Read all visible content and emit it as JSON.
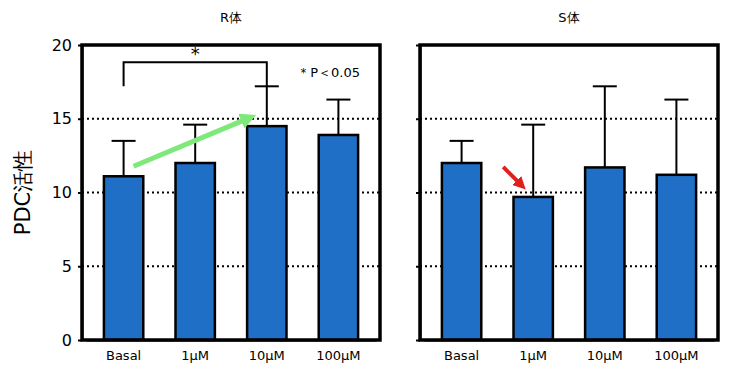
{
  "chart_data": [
    {
      "type": "bar",
      "title": "R体",
      "y_label": "PDC活性",
      "categories": [
        "Basal",
        "1μM",
        "10μM",
        "100μM"
      ],
      "values": [
        11.1,
        12.0,
        14.5,
        13.9
      ],
      "errors": [
        2.4,
        2.6,
        2.7,
        2.4
      ],
      "color": "#1f6fc6",
      "ylim": [
        0,
        20
      ],
      "yticks": [
        0,
        5,
        10,
        15,
        20
      ],
      "grid": true,
      "annotations": [
        {
          "text": "*",
          "between": [
            "Basal",
            "10μM"
          ]
        },
        {
          "text": "＊P＜0.05"
        }
      ]
    },
    {
      "type": "bar",
      "title": "S体",
      "categories": [
        "Basal",
        "1μM",
        "10μM",
        "100μM"
      ],
      "values": [
        12.0,
        9.7,
        11.7,
        11.2
      ],
      "errors": [
        1.5,
        4.9,
        5.5,
        5.1
      ],
      "color": "#1f6fc6",
      "ylim": [
        0,
        20
      ],
      "yticks": [
        0,
        5,
        10,
        15,
        20
      ],
      "grid": true,
      "tick_labels": "x"
    }
  ]
}
